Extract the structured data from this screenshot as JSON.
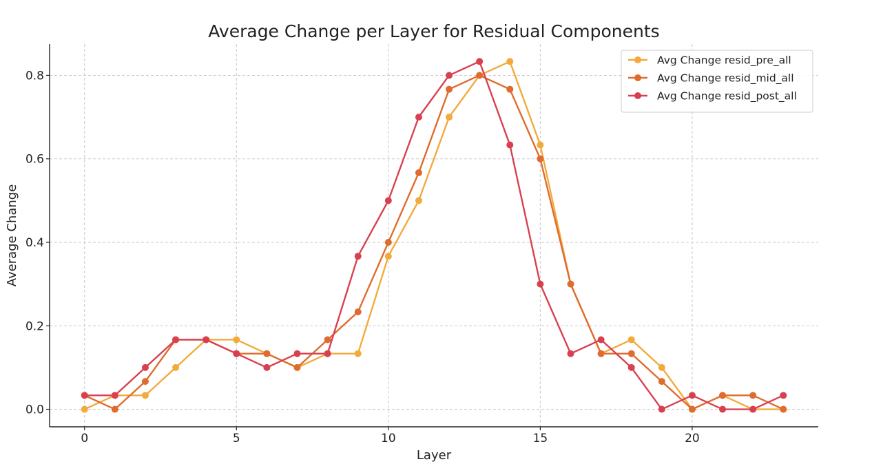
{
  "chart_data": {
    "type": "line",
    "title": "Average Change per Layer for Residual Components",
    "xlabel": "Layer",
    "ylabel": "Average Change",
    "x": [
      0,
      1,
      2,
      3,
      4,
      5,
      6,
      7,
      8,
      9,
      10,
      11,
      12,
      13,
      14,
      15,
      16,
      17,
      18,
      19,
      20,
      21,
      22,
      23
    ],
    "xlim": [
      -1.15,
      24.15
    ],
    "ylim": [
      -0.042,
      0.875
    ],
    "xticks": [
      0,
      5,
      10,
      15,
      20
    ],
    "xtick_labels": [
      "0",
      "5",
      "10",
      "15",
      "20"
    ],
    "yticks": [
      0.0,
      0.2,
      0.4,
      0.6,
      0.8
    ],
    "ytick_labels": [
      "0.0",
      "0.2",
      "0.4",
      "0.6",
      "0.8"
    ],
    "grid": true,
    "legend_position": "top-right",
    "markers": true,
    "series": [
      {
        "name": "Avg Change resid_pre_all",
        "color": "#F2AA3C",
        "values": [
          0.0,
          0.0333,
          0.0333,
          0.1,
          0.1667,
          0.1667,
          0.1333,
          0.1,
          0.1333,
          0.1333,
          0.3667,
          0.5,
          0.7,
          0.8,
          0.8333,
          0.6333,
          0.3,
          0.1333,
          0.1667,
          0.1,
          0.0,
          0.0333,
          0.0,
          0.0
        ]
      },
      {
        "name": "Avg Change resid_mid_all",
        "color": "#E06B2E",
        "values": [
          0.0333,
          0.0,
          0.0667,
          0.1667,
          0.1667,
          0.1333,
          0.1333,
          0.1,
          0.1667,
          0.2333,
          0.4,
          0.5667,
          0.7667,
          0.8,
          0.7667,
          0.6,
          0.3,
          0.1333,
          0.1333,
          0.0667,
          0.0,
          0.0333,
          0.0333,
          0.0
        ]
      },
      {
        "name": "Avg Change resid_post_all",
        "color": "#D9404F",
        "values": [
          0.0333,
          0.0333,
          0.1,
          0.1667,
          0.1667,
          0.1333,
          0.1,
          0.1333,
          0.1333,
          0.3667,
          0.5,
          0.7,
          0.8,
          0.8333,
          0.6333,
          0.3,
          0.1333,
          0.1667,
          0.1,
          0.0,
          0.0333,
          0.0,
          0.0,
          0.0333
        ]
      }
    ]
  }
}
